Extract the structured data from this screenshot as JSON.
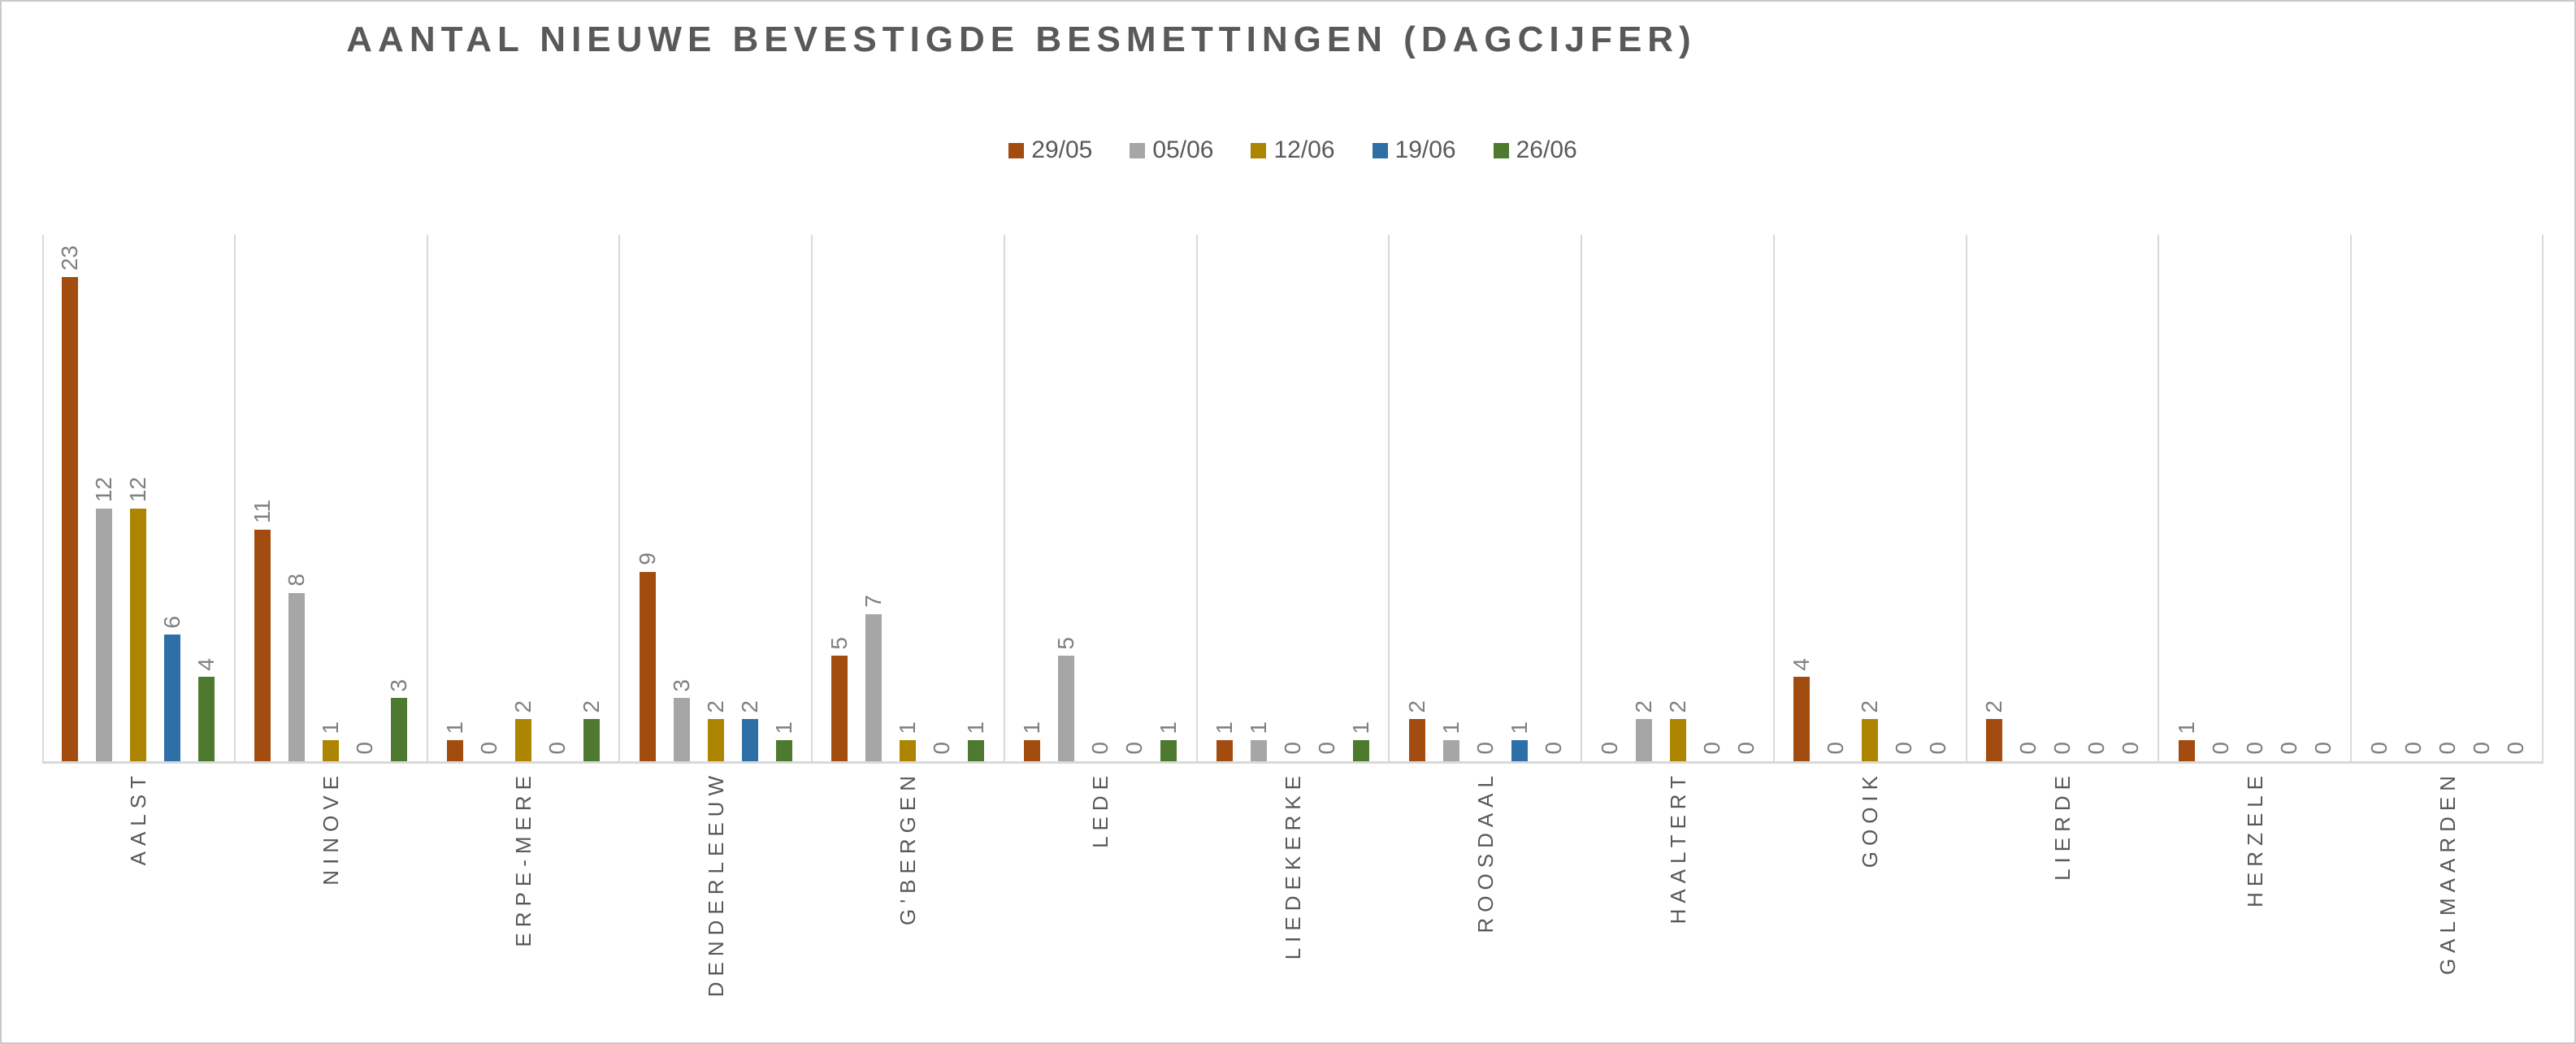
{
  "chart_data": {
    "type": "bar",
    "title": "AANTAL NIEUWE BEVESTIGDE BESMETTINGEN (DAGCIJFER)",
    "categories": [
      "AALST",
      "NINOVE",
      "ERPE-MERE",
      "DENDERLEEUW",
      "G'BERGEN",
      "LEDE",
      "LIEDEKERKE",
      "ROOSDAAL",
      "HAALTERT",
      "GOOIK",
      "LIERDE",
      "HERZELE",
      "GALMAARDEN"
    ],
    "series": [
      {
        "name": "29/05",
        "color": "#A34C0F",
        "values": [
          23,
          11,
          1,
          9,
          5,
          1,
          1,
          2,
          0,
          4,
          2,
          1,
          0
        ]
      },
      {
        "name": "05/06",
        "color": "#A6A6A6",
        "values": [
          12,
          8,
          0,
          3,
          7,
          5,
          1,
          1,
          2,
          0,
          0,
          0,
          0
        ]
      },
      {
        "name": "12/06",
        "color": "#AD8500",
        "values": [
          12,
          1,
          2,
          2,
          1,
          0,
          0,
          0,
          2,
          2,
          0,
          0,
          0
        ]
      },
      {
        "name": "19/06",
        "color": "#2E6FA8",
        "values": [
          6,
          0,
          0,
          2,
          0,
          0,
          0,
          1,
          0,
          0,
          0,
          0,
          0
        ]
      },
      {
        "name": "26/06",
        "color": "#4E7A30",
        "values": [
          4,
          3,
          2,
          1,
          1,
          1,
          1,
          0,
          0,
          0,
          0,
          0,
          0
        ]
      }
    ],
    "xlabel": "",
    "ylabel": "",
    "ylim": [
      0,
      25
    ],
    "grid": "vertical-category-separators",
    "y_axis_visible": false,
    "data_labels": true,
    "label_rotation": "vertical",
    "legend_position": "top"
  }
}
